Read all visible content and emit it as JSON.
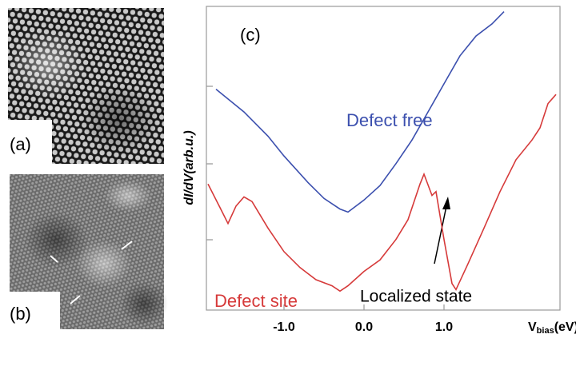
{
  "chart_data": {
    "type": "line",
    "x_label": {
      "main": "V",
      "sub": "bias",
      "unit": "(eV)"
    },
    "y_label": "dI/dV(arb.u.)",
    "panel_labels": [
      "(a)",
      "(b)",
      "(c)"
    ],
    "xlim": [
      -1.97,
      2.45
    ],
    "ylim": [
      0,
      4
    ],
    "xticks": [
      {
        "value": -1,
        "label": "-1.0"
      },
      {
        "value": 0,
        "label": "0.0"
      },
      {
        "value": 1,
        "label": "1.0"
      }
    ],
    "series": [
      {
        "name": "Defect free",
        "color": "#3b4fae",
        "x": [
          -1.85,
          -1.5,
          -1.2,
          -1.0,
          -0.7,
          -0.5,
          -0.3,
          -0.2,
          0.0,
          0.2,
          0.4,
          0.6,
          0.8,
          1.0,
          1.2,
          1.4,
          1.6,
          1.75
        ],
        "values": [
          2.91,
          2.61,
          2.29,
          2.03,
          1.68,
          1.47,
          1.33,
          1.29,
          1.45,
          1.64,
          1.93,
          2.24,
          2.61,
          2.98,
          3.35,
          3.61,
          3.77,
          3.93
        ]
      },
      {
        "name": "Defect site",
        "color": "#d63a3a",
        "x": [
          -1.95,
          -1.8,
          -1.7,
          -1.6,
          -1.5,
          -1.4,
          -1.2,
          -1.0,
          -0.8,
          -0.6,
          -0.4,
          -0.3,
          -0.2,
          0.0,
          0.2,
          0.4,
          0.55,
          0.7,
          0.75,
          0.85,
          0.9,
          1.0,
          1.1,
          1.15,
          1.3,
          1.5,
          1.7,
          1.9,
          2.1,
          2.2,
          2.3,
          2.4
        ],
        "values": [
          1.66,
          1.35,
          1.14,
          1.37,
          1.49,
          1.43,
          1.08,
          0.77,
          0.56,
          0.4,
          0.32,
          0.25,
          0.32,
          0.51,
          0.66,
          0.93,
          1.19,
          1.66,
          1.79,
          1.51,
          1.56,
          0.93,
          0.35,
          0.27,
          0.61,
          1.08,
          1.56,
          1.98,
          2.24,
          2.4,
          2.72,
          2.84
        ]
      }
    ],
    "annotation": "Localized state"
  }
}
